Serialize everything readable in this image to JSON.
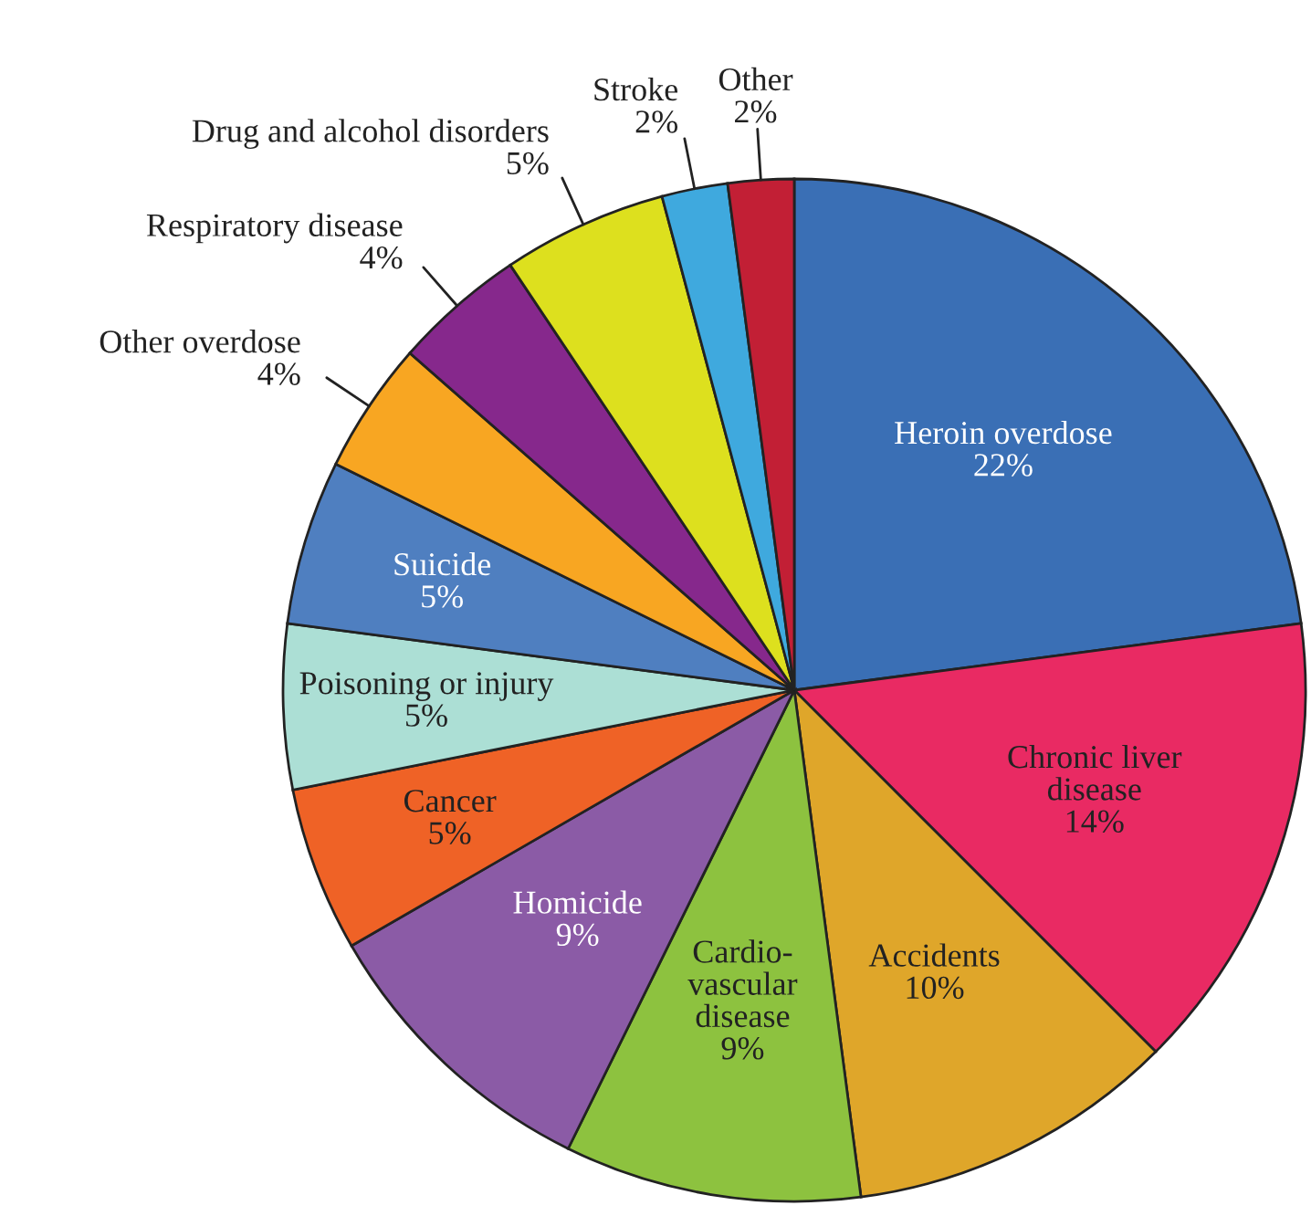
{
  "chart_data": {
    "type": "pie",
    "categories": [
      "Heroin overdose",
      "Chronic liver\ndisease",
      "Accidents",
      "Cardio-\nvascular\ndisease",
      "Homicide",
      "Cancer",
      "Poisoning or injury",
      "Suicide",
      "Other overdose",
      "Respiratory disease",
      "Drug and alcohol disorders",
      "Stroke",
      "Other"
    ],
    "values": [
      22,
      14,
      10,
      9,
      9,
      5,
      5,
      5,
      4,
      4,
      5,
      2,
      2
    ],
    "value_labels": [
      "22%",
      "14%",
      "10%",
      "9%",
      "9%",
      "5%",
      "5%",
      "5%",
      "4%",
      "4%",
      "5%",
      "2%",
      "2%"
    ],
    "colors": [
      "#3a6fb5",
      "#e92a63",
      "#dfa62a",
      "#8dc23f",
      "#8b5ba6",
      "#ef6226",
      "#acdfd5",
      "#4f7fc0",
      "#f8a622",
      "#86288c",
      "#dde01e",
      "#3fa9de",
      "#c21f35"
    ]
  }
}
